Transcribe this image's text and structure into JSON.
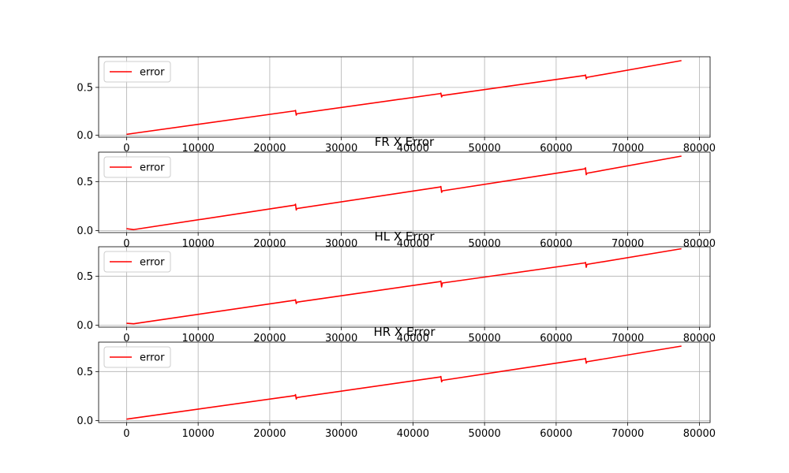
{
  "figure": {
    "colors": {
      "line": "#ff0000",
      "grid": "#b0b0b0",
      "axes": "#000000",
      "background": "#ffffff"
    }
  },
  "chart_data": [
    {
      "type": "line",
      "title": "",
      "xlabel": "",
      "ylabel": "",
      "xlim": [
        -3900,
        81500
      ],
      "ylim": [
        -0.02,
        0.82
      ],
      "xticks": [
        0,
        10000,
        20000,
        30000,
        40000,
        50000,
        60000,
        70000,
        80000
      ],
      "xtick_labels": [
        "0",
        "10000",
        "20000",
        "30000",
        "40000",
        "50000",
        "60000",
        "70000",
        "80000"
      ],
      "yticks": [
        0.0,
        0.5
      ],
      "ytick_labels": [
        "0.0",
        "0.5"
      ],
      "grid": true,
      "legend": {
        "position": "upper-left",
        "entries": [
          "error"
        ]
      },
      "series": [
        {
          "name": "error",
          "color": "#ff0000",
          "x": [
            0,
            23500,
            23600,
            23700,
            23800,
            43800,
            43900,
            44000,
            44100,
            64000,
            64100,
            64200,
            64300,
            77500
          ],
          "y": [
            0.01,
            0.255,
            0.26,
            0.21,
            0.225,
            0.435,
            0.44,
            0.4,
            0.415,
            0.625,
            0.63,
            0.59,
            0.605,
            0.78
          ]
        }
      ]
    },
    {
      "type": "line",
      "title": "FR X Error",
      "xlabel": "",
      "ylabel": "",
      "xlim": [
        -3900,
        81500
      ],
      "ylim": [
        -0.02,
        0.8
      ],
      "xticks": [
        0,
        10000,
        20000,
        30000,
        40000,
        50000,
        60000,
        70000,
        80000
      ],
      "xtick_labels": [
        "0",
        "10000",
        "20000",
        "30000",
        "40000",
        "50000",
        "60000",
        "70000",
        "80000"
      ],
      "yticks": [
        0.0,
        0.5
      ],
      "ytick_labels": [
        "0.0",
        "0.5"
      ],
      "grid": true,
      "legend": {
        "position": "upper-left",
        "entries": [
          "error"
        ]
      },
      "series": [
        {
          "name": "error",
          "color": "#ff0000",
          "x": [
            0,
            1000,
            23500,
            23600,
            23700,
            23800,
            43800,
            43900,
            44000,
            44100,
            64000,
            64100,
            64200,
            64300,
            77500
          ],
          "y": [
            0.02,
            0.01,
            0.26,
            0.27,
            0.21,
            0.225,
            0.445,
            0.45,
            0.39,
            0.405,
            0.63,
            0.64,
            0.57,
            0.585,
            0.76
          ]
        }
      ]
    },
    {
      "type": "line",
      "title": "HL X Error",
      "xlabel": "",
      "ylabel": "",
      "xlim": [
        -3900,
        81500
      ],
      "ylim": [
        -0.02,
        0.8
      ],
      "xticks": [
        0,
        10000,
        20000,
        30000,
        40000,
        50000,
        60000,
        70000,
        80000
      ],
      "xtick_labels": [
        "0",
        "10000",
        "20000",
        "30000",
        "40000",
        "50000",
        "60000",
        "70000",
        "80000"
      ],
      "yticks": [
        0.0,
        0.5
      ],
      "ytick_labels": [
        "0.0",
        "0.5"
      ],
      "grid": true,
      "legend": {
        "position": "upper-left",
        "entries": [
          "error"
        ]
      },
      "series": [
        {
          "name": "error",
          "color": "#ff0000",
          "x": [
            0,
            1000,
            23500,
            23600,
            23700,
            23800,
            43800,
            43900,
            44000,
            44100,
            64000,
            64100,
            64200,
            64300,
            77500
          ],
          "y": [
            0.02,
            0.015,
            0.255,
            0.26,
            0.22,
            0.235,
            0.445,
            0.45,
            0.39,
            0.43,
            0.635,
            0.64,
            0.59,
            0.62,
            0.78
          ]
        }
      ]
    },
    {
      "type": "line",
      "title": "HR X Error",
      "xlabel": "",
      "ylabel": "",
      "xlim": [
        -3900,
        81500
      ],
      "ylim": [
        -0.02,
        0.8
      ],
      "xticks": [
        0,
        10000,
        20000,
        30000,
        40000,
        50000,
        60000,
        70000,
        80000
      ],
      "xtick_labels": [
        "0",
        "10000",
        "20000",
        "30000",
        "40000",
        "50000",
        "60000",
        "70000",
        "80000"
      ],
      "yticks": [
        0.0,
        0.5
      ],
      "ytick_labels": [
        "0.0",
        "0.5"
      ],
      "grid": true,
      "legend": {
        "position": "upper-left",
        "entries": [
          "error"
        ]
      },
      "series": [
        {
          "name": "error",
          "color": "#ff0000",
          "x": [
            0,
            23500,
            23600,
            23700,
            23800,
            43800,
            43900,
            44000,
            44100,
            64000,
            64100,
            64200,
            64300,
            77500
          ],
          "y": [
            0.015,
            0.255,
            0.265,
            0.22,
            0.235,
            0.445,
            0.45,
            0.395,
            0.41,
            0.63,
            0.635,
            0.585,
            0.6,
            0.76
          ]
        }
      ]
    }
  ]
}
